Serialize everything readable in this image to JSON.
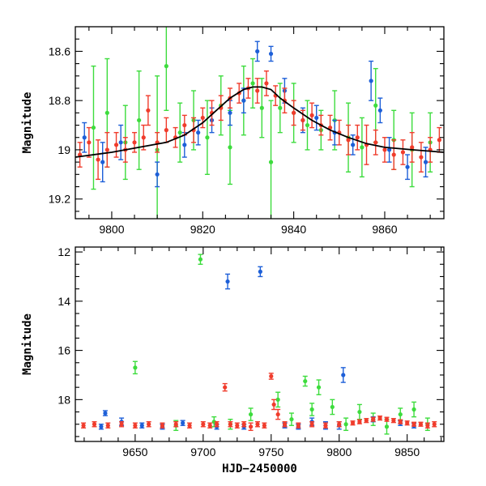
{
  "chart_data": [
    {
      "type": "scatter",
      "panel": "top",
      "title": "",
      "xlabel": "",
      "ylabel": "Magnitude",
      "xlim": [
        9792,
        9873
      ],
      "ylim": [
        19.28,
        18.5
      ],
      "y_inverted": true,
      "x_ticks": [
        9800,
        9820,
        9840,
        9860
      ],
      "x_tick_labels": [
        "9800",
        "9820",
        "9840",
        "9860"
      ],
      "y_ticks": [
        18.6,
        18.8,
        19.0,
        19.2
      ],
      "y_tick_labels": [
        "18.6",
        "18.8",
        "19",
        "19.2"
      ],
      "grid": false,
      "legend": "none",
      "model_curve": {
        "name": "model",
        "color": "#000000",
        "x": [
          9792,
          9800,
          9806,
          9812,
          9816,
          9820,
          9823,
          9826,
          9829,
          9831,
          9833,
          9835,
          9837,
          9840,
          9844,
          9848,
          9852,
          9856,
          9860,
          9866,
          9873
        ],
        "y": [
          19.03,
          19.01,
          18.99,
          18.97,
          18.94,
          18.89,
          18.84,
          18.79,
          18.755,
          18.745,
          18.745,
          18.755,
          18.79,
          18.83,
          18.88,
          18.92,
          18.95,
          18.975,
          18.99,
          19.0,
          19.01
        ]
      },
      "series": [
        {
          "name": "red",
          "color": "#f03c2c",
          "x": [
            9793,
            9795,
            9797,
            9799,
            9801,
            9803,
            9805,
            9807,
            9808,
            9810,
            9812,
            9814,
            9816,
            9818,
            9820,
            9822,
            9824,
            9826,
            9828,
            9830,
            9832,
            9834,
            9836,
            9838,
            9840,
            9842,
            9844,
            9846,
            9848,
            9850,
            9852,
            9854,
            9856,
            9858,
            9860,
            9862,
            9864,
            9866,
            9868,
            9870,
            9872
          ],
          "y": [
            19.02,
            18.97,
            19.04,
            19.0,
            18.98,
            19.0,
            18.97,
            18.95,
            18.84,
            18.97,
            18.92,
            18.95,
            18.9,
            18.92,
            18.87,
            18.85,
            18.83,
            18.79,
            18.77,
            18.75,
            18.76,
            18.73,
            18.78,
            18.8,
            18.85,
            18.88,
            18.86,
            18.9,
            18.91,
            18.93,
            18.96,
            18.95,
            18.98,
            18.97,
            19.0,
            19.02,
            19.01,
            18.99,
            19.03,
            19.0,
            18.96
          ],
          "yerr": [
            0.05,
            0.06,
            0.08,
            0.07,
            0.05,
            0.05,
            0.04,
            0.05,
            0.06,
            0.04,
            0.05,
            0.04,
            0.04,
            0.05,
            0.04,
            0.05,
            0.05,
            0.04,
            0.04,
            0.04,
            0.05,
            0.05,
            0.04,
            0.05,
            0.05,
            0.04,
            0.05,
            0.04,
            0.05,
            0.05,
            0.06,
            0.05,
            0.08,
            0.05,
            0.05,
            0.06,
            0.05,
            0.06,
            0.06,
            0.05,
            0.05
          ]
        },
        {
          "name": "blue",
          "color": "#1d5fd8",
          "x": [
            9794,
            9798,
            9802,
            9810,
            9816,
            9819,
            9822,
            9826,
            9829,
            9832,
            9835,
            9838,
            9842,
            9845,
            9849,
            9853,
            9857,
            9859,
            9861,
            9865,
            9869
          ],
          "y": [
            18.95,
            19.05,
            18.97,
            19.1,
            18.98,
            18.93,
            18.88,
            18.85,
            18.8,
            18.6,
            18.61,
            18.76,
            18.88,
            18.87,
            18.93,
            18.98,
            18.72,
            18.84,
            19.0,
            19.07,
            19.05
          ],
          "yerr": [
            0.06,
            0.08,
            0.07,
            0.05,
            0.05,
            0.05,
            0.05,
            0.05,
            0.05,
            0.04,
            0.03,
            0.05,
            0.05,
            0.05,
            0.05,
            0.04,
            0.08,
            0.05,
            0.05,
            0.05,
            0.06
          ]
        },
        {
          "name": "green",
          "color": "#3ddc3d",
          "x": [
            9796,
            9799,
            9803,
            9806,
            9810,
            9812,
            9815,
            9818,
            9821,
            9824,
            9826,
            9829,
            9831,
            9833,
            9835,
            9837,
            9840,
            9843,
            9846,
            9849,
            9852,
            9855,
            9858,
            9862,
            9866,
            9870
          ],
          "y": [
            18.91,
            18.85,
            18.97,
            18.88,
            19.0,
            18.66,
            18.93,
            18.88,
            18.95,
            18.82,
            18.99,
            18.8,
            18.73,
            18.83,
            19.05,
            18.83,
            18.85,
            18.9,
            18.92,
            18.88,
            18.95,
            18.99,
            18.82,
            18.96,
            19.0,
            18.97
          ],
          "yerr": [
            0.25,
            0.22,
            0.15,
            0.2,
            0.3,
            0.18,
            0.12,
            0.12,
            0.15,
            0.12,
            0.15,
            0.14,
            0.1,
            0.12,
            0.25,
            0.1,
            0.12,
            0.1,
            0.08,
            0.12,
            0.14,
            0.12,
            0.15,
            0.12,
            0.15,
            0.12
          ]
        }
      ]
    },
    {
      "type": "scatter",
      "panel": "bottom",
      "title": "",
      "xlabel": "HJD−2450000",
      "ylabel": "Magnitude",
      "xlim": [
        9606,
        9877
      ],
      "ylim": [
        19.7,
        11.8
      ],
      "y_inverted": true,
      "x_ticks": [
        9650,
        9700,
        9750,
        9800,
        9850
      ],
      "x_tick_labels": [
        "9650",
        "9700",
        "9750",
        "9800",
        "9850"
      ],
      "y_ticks": [
        12,
        14,
        16,
        18
      ],
      "y_tick_labels": [
        "12",
        "14",
        "16",
        "18"
      ],
      "grid": false,
      "legend": "none",
      "series": [
        {
          "name": "red",
          "color": "#f03c2c",
          "x": [
            9612,
            9620,
            9630,
            9640,
            9650,
            9660,
            9670,
            9680,
            9690,
            9700,
            9705,
            9710,
            9716,
            9720,
            9725,
            9730,
            9735,
            9740,
            9745,
            9750,
            9752,
            9755,
            9760,
            9770,
            9780,
            9790,
            9800,
            9810,
            9815,
            9820,
            9825,
            9830,
            9835,
            9840,
            9845,
            9850,
            9855,
            9860,
            9865,
            9870
          ],
          "y": [
            19.05,
            19.0,
            19.05,
            19.0,
            19.05,
            19.0,
            19.05,
            19.0,
            19.05,
            19.0,
            19.05,
            19.0,
            17.5,
            19.0,
            19.05,
            19.0,
            19.1,
            19.0,
            19.05,
            17.05,
            18.2,
            18.6,
            19.0,
            19.05,
            19.0,
            19.05,
            19.0,
            18.95,
            18.9,
            18.85,
            18.8,
            18.75,
            18.8,
            18.85,
            18.9,
            18.95,
            19.0,
            19.0,
            19.05,
            19.0
          ],
          "yerr": [
            0.1,
            0.1,
            0.1,
            0.1,
            0.1,
            0.1,
            0.1,
            0.1,
            0.1,
            0.1,
            0.1,
            0.1,
            0.15,
            0.1,
            0.1,
            0.1,
            0.15,
            0.1,
            0.1,
            0.12,
            0.2,
            0.2,
            0.1,
            0.1,
            0.1,
            0.1,
            0.1,
            0.08,
            0.08,
            0.08,
            0.08,
            0.08,
            0.08,
            0.08,
            0.08,
            0.08,
            0.08,
            0.08,
            0.1,
            0.1
          ]
        },
        {
          "name": "blue",
          "color": "#1d5fd8",
          "x": [
            9625,
            9628,
            9640,
            9655,
            9670,
            9685,
            9710,
            9718,
            9730,
            9742,
            9760,
            9770,
            9780,
            9790,
            9800,
            9803,
            9825,
            9845,
            9855
          ],
          "y": [
            19.1,
            18.55,
            18.9,
            19.05,
            19.1,
            18.95,
            19.1,
            13.2,
            19.1,
            12.8,
            19.05,
            19.1,
            18.9,
            19.05,
            19.05,
            17.0,
            18.8,
            18.95,
            19.05
          ],
          "yerr": [
            0.1,
            0.1,
            0.15,
            0.1,
            0.1,
            0.1,
            0.1,
            0.3,
            0.1,
            0.2,
            0.1,
            0.1,
            0.15,
            0.15,
            0.15,
            0.3,
            0.1,
            0.1,
            0.1
          ]
        },
        {
          "name": "green",
          "color": "#3ddc3d",
          "x": [
            9650,
            9680,
            9698,
            9708,
            9720,
            9735,
            9755,
            9765,
            9775,
            9780,
            9785,
            9795,
            9805,
            9815,
            9825,
            9835,
            9845,
            9855,
            9865
          ],
          "y": [
            16.7,
            19.05,
            12.3,
            18.9,
            19.0,
            18.6,
            18.0,
            18.8,
            17.25,
            18.4,
            17.5,
            18.3,
            19.0,
            18.5,
            18.8,
            19.1,
            18.6,
            18.4,
            19.0
          ],
          "yerr": [
            0.25,
            0.2,
            0.2,
            0.2,
            0.2,
            0.25,
            0.3,
            0.25,
            0.2,
            0.25,
            0.3,
            0.3,
            0.25,
            0.3,
            0.25,
            0.3,
            0.25,
            0.3,
            0.25
          ]
        }
      ]
    }
  ]
}
